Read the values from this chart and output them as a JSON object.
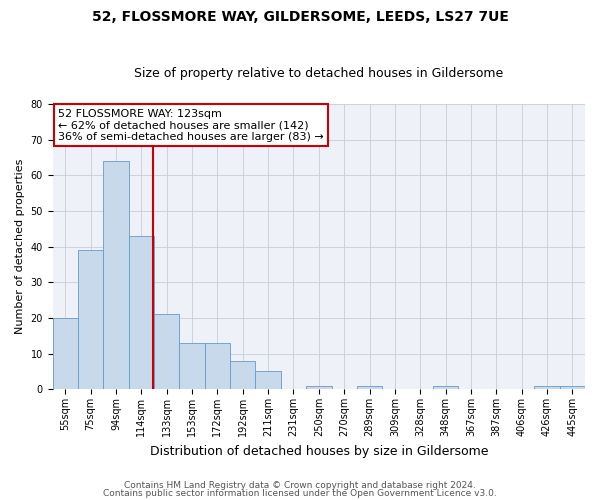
{
  "title": "52, FLOSSMORE WAY, GILDERSOME, LEEDS, LS27 7UE",
  "subtitle": "Size of property relative to detached houses in Gildersome",
  "xlabel": "Distribution of detached houses by size in Gildersome",
  "ylabel": "Number of detached properties",
  "bin_labels": [
    "55sqm",
    "75sqm",
    "94sqm",
    "114sqm",
    "133sqm",
    "153sqm",
    "172sqm",
    "192sqm",
    "211sqm",
    "231sqm",
    "250sqm",
    "270sqm",
    "289sqm",
    "309sqm",
    "328sqm",
    "348sqm",
    "367sqm",
    "387sqm",
    "406sqm",
    "426sqm",
    "445sqm"
  ],
  "bar_values": [
    20,
    39,
    64,
    43,
    21,
    13,
    13,
    8,
    5,
    0,
    1,
    0,
    1,
    0,
    0,
    1,
    0,
    0,
    0,
    1,
    1
  ],
  "bar_color": "#c8d9ec",
  "bar_edge_color": "#6699cc",
  "ylim": [
    0,
    80
  ],
  "yticks": [
    0,
    10,
    20,
    30,
    40,
    50,
    60,
    70,
    80
  ],
  "vline_color": "#cc0000",
  "vline_position": 3.47,
  "annotation_title": "52 FLOSSMORE WAY: 123sqm",
  "annotation_line1": "← 62% of detached houses are smaller (142)",
  "annotation_line2": "36% of semi-detached houses are larger (83) →",
  "annotation_box_color": "#cc0000",
  "footer_line1": "Contains HM Land Registry data © Crown copyright and database right 2024.",
  "footer_line2": "Contains public sector information licensed under the Open Government Licence v3.0.",
  "background_color": "#eef2f8",
  "grid_color": "#c8cdd6",
  "title_fontsize": 10,
  "subtitle_fontsize": 9,
  "ylabel_fontsize": 8,
  "xlabel_fontsize": 9,
  "tick_fontsize": 7,
  "annotation_fontsize": 8,
  "footer_fontsize": 6.5
}
